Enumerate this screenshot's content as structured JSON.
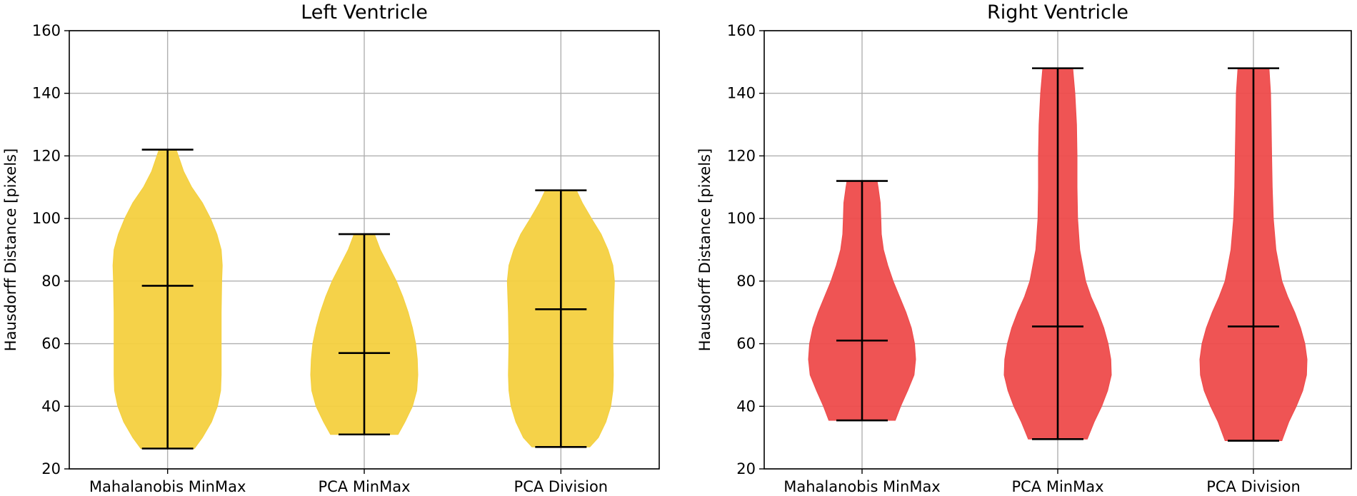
{
  "chart_data": [
    {
      "type": "violin",
      "title": "Left Ventricle",
      "xlabel": "",
      "ylabel": "Hausdorff Distance [pixels]",
      "ylim": [
        20,
        160
      ],
      "yticks": [
        20,
        40,
        60,
        80,
        100,
        120,
        140,
        160
      ],
      "grid": true,
      "color": "#f4d03f",
      "categories": [
        "Mahalanobis MinMax",
        "PCA MinMax",
        "PCA Division"
      ],
      "series": [
        {
          "name": "Mahalanobis MinMax",
          "min": 26.5,
          "max": 122,
          "median": 78.5,
          "density": [
            [
              26.5,
              0.5
            ],
            [
              30,
              0.65
            ],
            [
              35,
              0.82
            ],
            [
              40,
              0.93
            ],
            [
              45,
              0.99
            ],
            [
              50,
              1.0
            ],
            [
              60,
              1.0
            ],
            [
              70,
              1.0
            ],
            [
              80,
              1.01
            ],
            [
              85,
              1.02
            ],
            [
              90,
              1.0
            ],
            [
              95,
              0.92
            ],
            [
              100,
              0.8
            ],
            [
              105,
              0.65
            ],
            [
              110,
              0.45
            ],
            [
              115,
              0.3
            ],
            [
              120,
              0.2
            ],
            [
              122,
              0.16
            ]
          ]
        },
        {
          "name": "PCA MinMax",
          "min": 31,
          "max": 95,
          "median": 57,
          "density": [
            [
              31,
              0.63
            ],
            [
              35,
              0.76
            ],
            [
              40,
              0.9
            ],
            [
              45,
              0.98
            ],
            [
              50,
              1.0
            ],
            [
              55,
              0.99
            ],
            [
              60,
              0.96
            ],
            [
              65,
              0.9
            ],
            [
              70,
              0.82
            ],
            [
              75,
              0.72
            ],
            [
              80,
              0.6
            ],
            [
              85,
              0.45
            ],
            [
              90,
              0.3
            ],
            [
              95,
              0.19
            ]
          ]
        },
        {
          "name": "PCA Division",
          "min": 27,
          "max": 109,
          "median": 71,
          "density": [
            [
              27,
              0.54
            ],
            [
              30,
              0.7
            ],
            [
              35,
              0.84
            ],
            [
              40,
              0.93
            ],
            [
              45,
              0.97
            ],
            [
              50,
              0.98
            ],
            [
              60,
              0.97
            ],
            [
              70,
              0.98
            ],
            [
              80,
              1.0
            ],
            [
              85,
              0.97
            ],
            [
              90,
              0.88
            ],
            [
              95,
              0.75
            ],
            [
              100,
              0.57
            ],
            [
              105,
              0.4
            ],
            [
              109,
              0.29
            ]
          ]
        }
      ]
    },
    {
      "type": "violin",
      "title": "Right Ventricle",
      "xlabel": "",
      "ylabel": "Hausdorff Distance [pixels]",
      "ylim": [
        20,
        160
      ],
      "yticks": [
        20,
        40,
        60,
        80,
        100,
        120,
        140,
        160
      ],
      "grid": true,
      "color": "#ee4b4b",
      "categories": [
        "Mahalanobis MinMax",
        "PCA MinMax",
        "PCA Division"
      ],
      "series": [
        {
          "name": "Mahalanobis MinMax",
          "min": 35.5,
          "max": 112,
          "median": 61,
          "density": [
            [
              35.5,
              0.62
            ],
            [
              40,
              0.72
            ],
            [
              45,
              0.85
            ],
            [
              50,
              0.97
            ],
            [
              55,
              1.0
            ],
            [
              60,
              0.98
            ],
            [
              65,
              0.92
            ],
            [
              70,
              0.82
            ],
            [
              75,
              0.7
            ],
            [
              80,
              0.58
            ],
            [
              85,
              0.48
            ],
            [
              90,
              0.4
            ],
            [
              95,
              0.36
            ],
            [
              100,
              0.35
            ],
            [
              105,
              0.34
            ],
            [
              110,
              0.3
            ],
            [
              112,
              0.28
            ]
          ]
        },
        {
          "name": "PCA MinMax",
          "min": 29.5,
          "max": 148,
          "median": 65.5,
          "density": [
            [
              29.5,
              0.55
            ],
            [
              35,
              0.68
            ],
            [
              40,
              0.82
            ],
            [
              45,
              0.93
            ],
            [
              50,
              1.0
            ],
            [
              55,
              0.99
            ],
            [
              60,
              0.94
            ],
            [
              65,
              0.86
            ],
            [
              70,
              0.75
            ],
            [
              75,
              0.62
            ],
            [
              80,
              0.52
            ],
            [
              90,
              0.41
            ],
            [
              100,
              0.37
            ],
            [
              110,
              0.36
            ],
            [
              120,
              0.36
            ],
            [
              130,
              0.35
            ],
            [
              140,
              0.32
            ],
            [
              148,
              0.28
            ]
          ]
        },
        {
          "name": "PCA Division",
          "min": 29,
          "max": 148,
          "median": 65.5,
          "density": [
            [
              29,
              0.53
            ],
            [
              35,
              0.66
            ],
            [
              40,
              0.8
            ],
            [
              45,
              0.92
            ],
            [
              50,
              0.99
            ],
            [
              55,
              1.0
            ],
            [
              60,
              0.96
            ],
            [
              65,
              0.88
            ],
            [
              70,
              0.77
            ],
            [
              75,
              0.64
            ],
            [
              80,
              0.53
            ],
            [
              90,
              0.42
            ],
            [
              100,
              0.37
            ],
            [
              110,
              0.35
            ],
            [
              120,
              0.34
            ],
            [
              130,
              0.33
            ],
            [
              140,
              0.32
            ],
            [
              148,
              0.29
            ]
          ]
        }
      ]
    }
  ]
}
